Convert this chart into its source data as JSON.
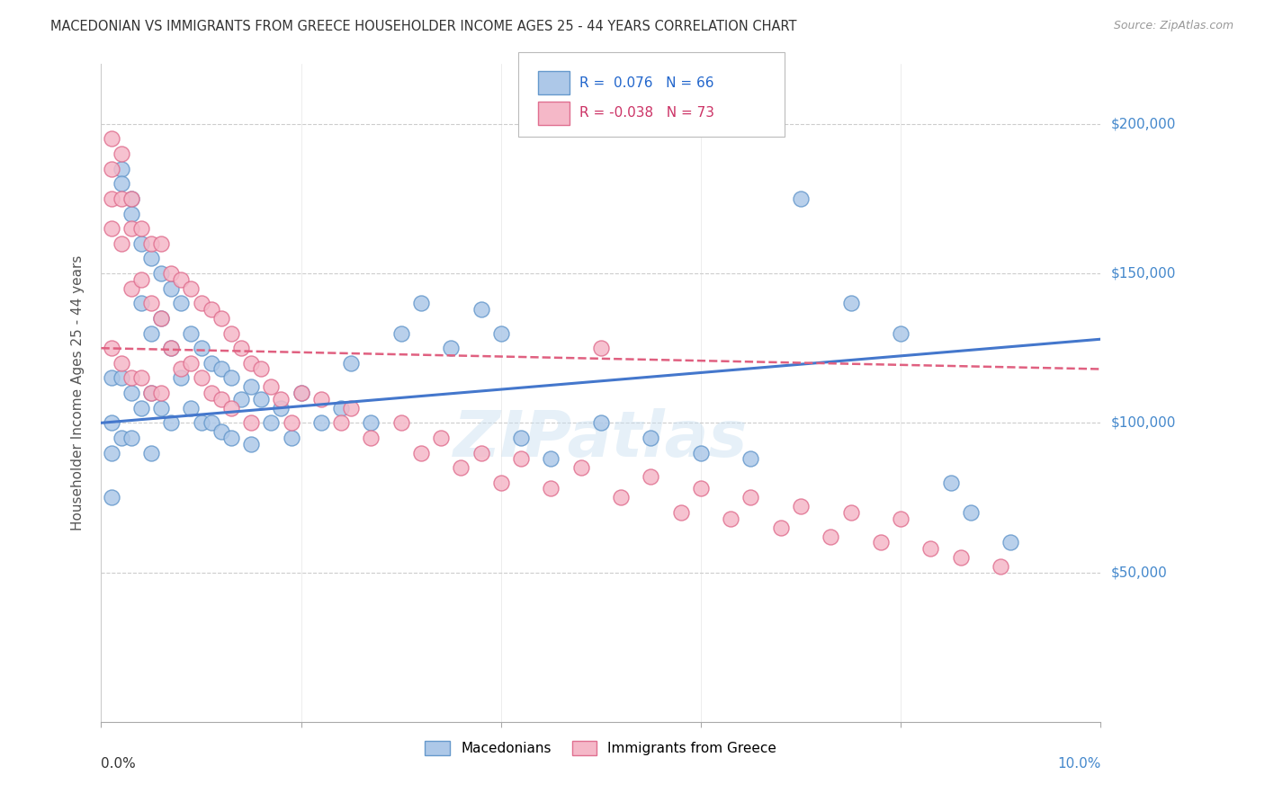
{
  "title": "MACEDONIAN VS IMMIGRANTS FROM GREECE HOUSEHOLDER INCOME AGES 25 - 44 YEARS CORRELATION CHART",
  "source": "Source: ZipAtlas.com",
  "ylabel": "Householder Income Ages 25 - 44 years",
  "blue_R": "0.076",
  "blue_N": "66",
  "pink_R": "-0.038",
  "pink_N": "73",
  "blue_color": "#adc8e8",
  "blue_edge": "#6699cc",
  "pink_color": "#f5b8c8",
  "pink_edge": "#e07090",
  "blue_line_color": "#4477cc",
  "pink_line_color": "#e06080",
  "y_tick_labels": [
    "$50,000",
    "$100,000",
    "$150,000",
    "$200,000"
  ],
  "y_tick_values": [
    50000,
    100000,
    150000,
    200000
  ],
  "background_color": "#ffffff",
  "grid_color": "#cccccc",
  "right_label_color": "#4488cc",
  "xlim": [
    0.0,
    0.1
  ],
  "ylim": [
    0,
    220000
  ],
  "blue_scatter_x": [
    0.001,
    0.001,
    0.001,
    0.001,
    0.002,
    0.002,
    0.002,
    0.002,
    0.003,
    0.003,
    0.003,
    0.003,
    0.004,
    0.004,
    0.004,
    0.005,
    0.005,
    0.005,
    0.005,
    0.006,
    0.006,
    0.006,
    0.007,
    0.007,
    0.007,
    0.008,
    0.008,
    0.009,
    0.009,
    0.01,
    0.01,
    0.011,
    0.011,
    0.012,
    0.012,
    0.013,
    0.013,
    0.014,
    0.015,
    0.015,
    0.016,
    0.017,
    0.018,
    0.019,
    0.02,
    0.022,
    0.024,
    0.025,
    0.027,
    0.03,
    0.032,
    0.035,
    0.038,
    0.04,
    0.042,
    0.045,
    0.05,
    0.055,
    0.06,
    0.065,
    0.07,
    0.075,
    0.08,
    0.085,
    0.087,
    0.091
  ],
  "blue_scatter_y": [
    115000,
    100000,
    90000,
    75000,
    185000,
    180000,
    115000,
    95000,
    175000,
    170000,
    110000,
    95000,
    160000,
    140000,
    105000,
    155000,
    130000,
    110000,
    90000,
    150000,
    135000,
    105000,
    145000,
    125000,
    100000,
    140000,
    115000,
    130000,
    105000,
    125000,
    100000,
    120000,
    100000,
    118000,
    97000,
    115000,
    95000,
    108000,
    112000,
    93000,
    108000,
    100000,
    105000,
    95000,
    110000,
    100000,
    105000,
    120000,
    100000,
    130000,
    140000,
    125000,
    138000,
    130000,
    95000,
    88000,
    100000,
    95000,
    90000,
    88000,
    175000,
    140000,
    130000,
    80000,
    70000,
    60000
  ],
  "pink_scatter_x": [
    0.001,
    0.001,
    0.001,
    0.001,
    0.001,
    0.002,
    0.002,
    0.002,
    0.002,
    0.003,
    0.003,
    0.003,
    0.003,
    0.004,
    0.004,
    0.004,
    0.005,
    0.005,
    0.005,
    0.006,
    0.006,
    0.006,
    0.007,
    0.007,
    0.008,
    0.008,
    0.009,
    0.009,
    0.01,
    0.01,
    0.011,
    0.011,
    0.012,
    0.012,
    0.013,
    0.013,
    0.014,
    0.015,
    0.015,
    0.016,
    0.017,
    0.018,
    0.019,
    0.02,
    0.022,
    0.024,
    0.025,
    0.027,
    0.03,
    0.032,
    0.034,
    0.036,
    0.038,
    0.04,
    0.042,
    0.045,
    0.048,
    0.05,
    0.052,
    0.055,
    0.058,
    0.06,
    0.063,
    0.065,
    0.068,
    0.07,
    0.073,
    0.075,
    0.078,
    0.08,
    0.083,
    0.086,
    0.09
  ],
  "pink_scatter_y": [
    195000,
    185000,
    175000,
    165000,
    125000,
    190000,
    175000,
    160000,
    120000,
    175000,
    165000,
    145000,
    115000,
    165000,
    148000,
    115000,
    160000,
    140000,
    110000,
    160000,
    135000,
    110000,
    150000,
    125000,
    148000,
    118000,
    145000,
    120000,
    140000,
    115000,
    138000,
    110000,
    135000,
    108000,
    130000,
    105000,
    125000,
    120000,
    100000,
    118000,
    112000,
    108000,
    100000,
    110000,
    108000,
    100000,
    105000,
    95000,
    100000,
    90000,
    95000,
    85000,
    90000,
    80000,
    88000,
    78000,
    85000,
    125000,
    75000,
    82000,
    70000,
    78000,
    68000,
    75000,
    65000,
    72000,
    62000,
    70000,
    60000,
    68000,
    58000,
    55000,
    52000
  ]
}
